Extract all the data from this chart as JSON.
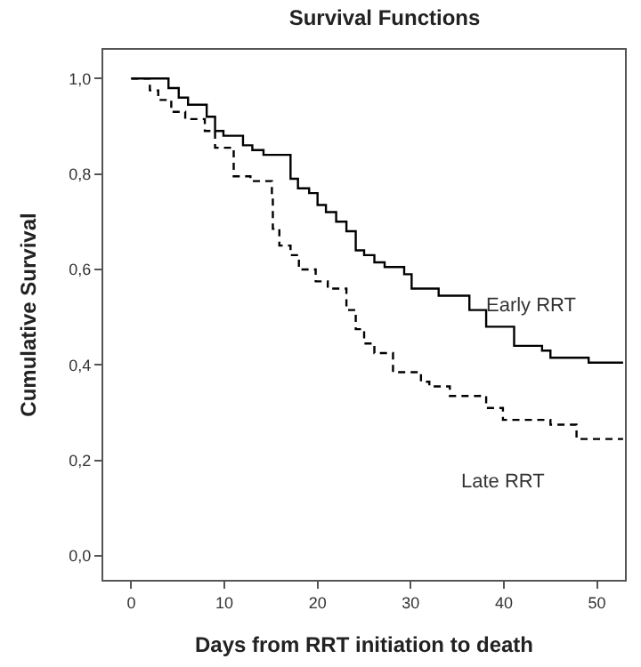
{
  "chart_data": {
    "type": "step",
    "title": "Survival Functions",
    "xlabel": "Days from RRT initiation to death",
    "ylabel": "Cumulative Survival",
    "xlim": [
      -3,
      53
    ],
    "xticks": [
      0,
      10,
      20,
      30,
      40,
      50
    ],
    "ylim": [
      -0.05,
      1.06
    ],
    "yticks": [
      {
        "value": 0,
        "label": "0,0"
      },
      {
        "value": 0.2,
        "label": "0,2"
      },
      {
        "value": 0.4,
        "label": "0,4"
      },
      {
        "value": 0.6,
        "label": "0,6"
      },
      {
        "value": 0.8,
        "label": "0,8"
      },
      {
        "value": 1,
        "label": "1,0"
      }
    ],
    "legend": false,
    "marker": "none",
    "series": [
      {
        "name": "Early RRT",
        "color": "#000000",
        "line_style": "solid",
        "x": [
          0,
          4,
          5.1,
          6.1,
          8.1,
          9,
          9.9,
          12,
          13,
          14.2,
          17.1,
          17.9,
          19.1,
          20,
          20.9,
          22,
          23.1,
          24.1,
          25,
          26.1,
          27.2,
          29.3,
          30.1,
          33,
          36.3,
          38.1,
          41.1,
          44.1,
          45,
          49.1,
          52.8
        ],
        "values": [
          1,
          0.98,
          0.96,
          0.945,
          0.92,
          0.89,
          0.88,
          0.86,
          0.85,
          0.84,
          0.79,
          0.77,
          0.76,
          0.735,
          0.72,
          0.7,
          0.68,
          0.64,
          0.63,
          0.615,
          0.605,
          0.59,
          0.56,
          0.545,
          0.515,
          0.48,
          0.44,
          0.43,
          0.415,
          0.405,
          0.405
        ]
      },
      {
        "name": "Late RRT",
        "color": "#000000",
        "line_style": "dashed",
        "x": [
          0,
          2,
          2.9,
          4.3,
          5.8,
          7.9,
          9,
          11,
          12.8,
          15.1,
          15.2,
          15.9,
          17.1,
          18,
          19.8,
          21.1,
          23.1,
          24.1,
          25,
          26.1,
          28.1,
          31.1,
          32,
          34.2,
          38.1,
          39.9,
          45,
          47.8,
          52.8
        ],
        "values": [
          1,
          0.975,
          0.955,
          0.93,
          0.915,
          0.89,
          0.855,
          0.795,
          0.785,
          0.755,
          0.685,
          0.65,
          0.63,
          0.6,
          0.575,
          0.56,
          0.515,
          0.475,
          0.445,
          0.425,
          0.385,
          0.365,
          0.355,
          0.335,
          0.31,
          0.285,
          0.275,
          0.245,
          0.245
        ]
      }
    ]
  }
}
